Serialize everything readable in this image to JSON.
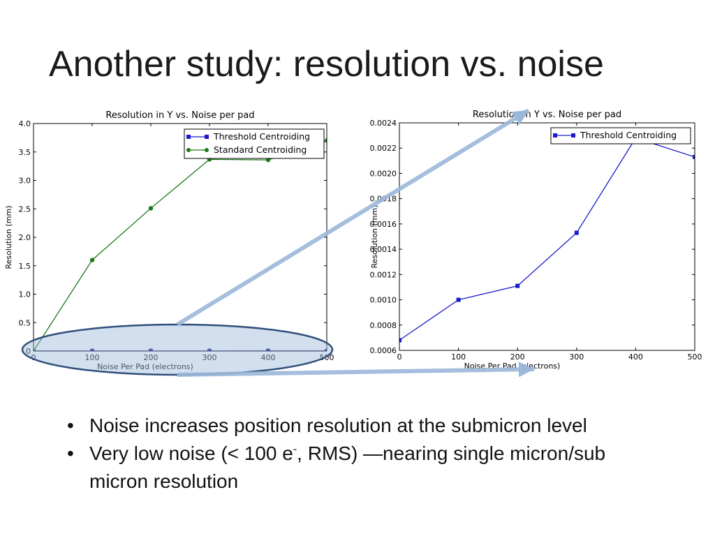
{
  "slide": {
    "title": "Another study: resolution vs. noise",
    "bullets": [
      {
        "text": "Noise increases position resolution at the submicron level"
      },
      {
        "pre": "Very low noise (< 100 e",
        "sup": "-",
        "post": ", RMS) —nearing single micron/sub micron resolution"
      }
    ]
  },
  "colors": {
    "threshold": "#1a1acc",
    "standard": "#1a7a1a",
    "highlight": "#9bb7d9",
    "ellipse_border": "#2f4f7a"
  },
  "chart_data": [
    {
      "type": "line",
      "title": "Resolution in Y vs. Noise per pad",
      "xlabel": "Noise Per Pad (electrons)",
      "ylabel": "Resolution (mm)",
      "xlim": [
        0,
        500
      ],
      "ylim": [
        0,
        4.0
      ],
      "xticks": [
        0,
        100,
        200,
        300,
        400,
        500
      ],
      "yticks": [
        0,
        0.5,
        1.0,
        1.5,
        2.0,
        2.5,
        3.0,
        3.5,
        4.0
      ],
      "ytick_labels": [
        "0",
        "0.5",
        "1.0",
        "1.5",
        "2.0",
        "2.5",
        "3.0",
        "3.5",
        "4.0"
      ],
      "grid": false,
      "legend": "top-right",
      "series": [
        {
          "name": "Threshold Centroiding",
          "color": "#1a1acc",
          "marker": "square",
          "x": [
            0,
            100,
            200,
            300,
            400,
            500
          ],
          "y": [
            0.0007,
            0.001,
            0.0011,
            0.0015,
            0.0023,
            0.0021
          ]
        },
        {
          "name": "Standard Centroiding",
          "color": "#1a7a1a",
          "marker": "circle",
          "x": [
            0,
            100,
            200,
            300,
            400,
            500
          ],
          "y": [
            0.0,
            1.6,
            2.51,
            3.37,
            3.36,
            3.7
          ]
        }
      ]
    },
    {
      "type": "line",
      "title": "Resolution in Y vs. Noise per pad",
      "xlabel": "Noise Per Pad (electrons)",
      "ylabel": "Resolution (mm)",
      "xlim": [
        0,
        500
      ],
      "ylim": [
        0.0006,
        0.0024
      ],
      "xticks": [
        0,
        100,
        200,
        300,
        400,
        500
      ],
      "yticks": [
        0.0006,
        0.0008,
        0.001,
        0.0012,
        0.0014,
        0.0016,
        0.0018,
        0.002,
        0.0022,
        0.0024
      ],
      "ytick_labels": [
        "0.0006",
        "0.0008",
        "0.0010",
        "0.0012",
        "0.0014",
        "0.0016",
        "0.0018",
        "0.0020",
        "0.0022",
        "0.0024"
      ],
      "grid": false,
      "legend": "top-right",
      "series": [
        {
          "name": "Threshold Centroiding",
          "color": "#1a1acc",
          "marker": "square",
          "x": [
            0,
            100,
            200,
            300,
            400,
            500
          ],
          "y": [
            0.00068,
            0.001,
            0.00111,
            0.00153,
            0.00228,
            0.00213
          ]
        }
      ]
    }
  ]
}
